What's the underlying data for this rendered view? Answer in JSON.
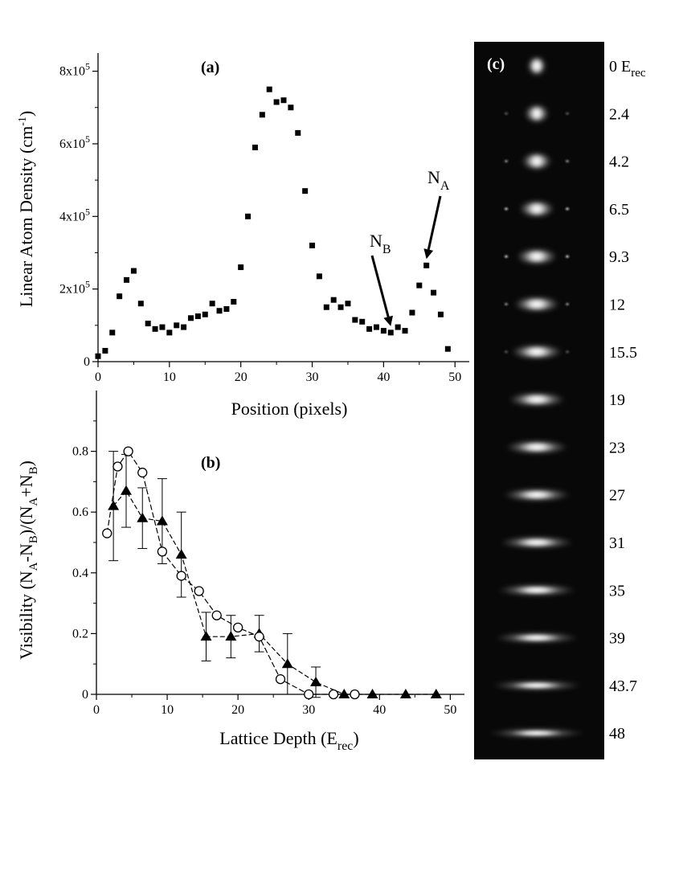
{
  "chart_data": [
    {
      "type": "scatter",
      "panel_label": "(a)",
      "xlabel": "Position (pixels)",
      "ylabel_parts": [
        "Linear Atom Density (cm",
        "-1",
        ")"
      ],
      "xlim": [
        0,
        52
      ],
      "ylim": [
        0,
        850000
      ],
      "xticks": [
        0,
        10,
        20,
        30,
        40,
        50
      ],
      "xtick_labels": [
        "0",
        "10",
        "20",
        "30",
        "40",
        "50"
      ],
      "yticks": [
        0,
        200000,
        400000,
        600000,
        800000
      ],
      "ytick_labels": [
        [
          "0",
          ""
        ],
        [
          "2x10",
          "5"
        ],
        [
          "4x10",
          "5"
        ],
        [
          "6x10",
          "5"
        ],
        [
          "8x10",
          "5"
        ]
      ],
      "marker": "filled-square",
      "series": [
        {
          "x": [
            0,
            1,
            2,
            3,
            4,
            5,
            6,
            7,
            8,
            9,
            10,
            11,
            12,
            13,
            14,
            15,
            16,
            17,
            18,
            19,
            20,
            21,
            22,
            23,
            24,
            25,
            26,
            27,
            28,
            29,
            30,
            31,
            32,
            33,
            34,
            35,
            36,
            37,
            38,
            39,
            40,
            41,
            42,
            43,
            44,
            45,
            46,
            47,
            48,
            49
          ],
          "y": [
            15000,
            30000,
            80000,
            180000,
            225000,
            250000,
            160000,
            105000,
            90000,
            95000,
            80000,
            100000,
            95000,
            120000,
            125000,
            130000,
            160000,
            140000,
            145000,
            165000,
            260000,
            400000,
            590000,
            680000,
            750000,
            715000,
            720000,
            700000,
            630000,
            470000,
            320000,
            235000,
            150000,
            170000,
            150000,
            160000,
            115000,
            110000,
            90000,
            95000,
            85000,
            80000,
            95000,
            85000,
            135000,
            210000,
            265000,
            190000,
            130000,
            35000
          ]
        }
      ],
      "annotations": [
        {
          "text": "N",
          "sub": "B",
          "points_to": [
            41,
            80000
          ]
        },
        {
          "text": "N",
          "sub": "A",
          "points_to": [
            46,
            265000
          ]
        }
      ]
    },
    {
      "type": "line",
      "panel_label": "(b)",
      "xlabel_parts": [
        "Lattice Depth (E",
        "rec",
        ")"
      ],
      "ylabel": "Visibility (N_A-N_B)/(N_A+N_B)",
      "xlim": [
        0,
        52
      ],
      "ylim": [
        0,
        1.0
      ],
      "xticks": [
        0,
        10,
        20,
        30,
        40,
        50
      ],
      "xtick_labels": [
        "0",
        "10",
        "20",
        "30",
        "40",
        "50"
      ],
      "yticks": [
        0,
        0.2,
        0.4,
        0.6,
        0.8
      ],
      "ytick_labels": [
        "0",
        "0.2",
        "0.4",
        "0.6",
        "0.8"
      ],
      "series": [
        {
          "marker": "open-circle",
          "x": [
            1.5,
            3.0,
            4.5,
            6.5,
            9.3,
            12,
            14.5,
            17,
            20,
            23,
            26,
            30,
            33.5,
            36.5
          ],
          "y": [
            0.53,
            0.75,
            0.8,
            0.73,
            0.47,
            0.39,
            0.34,
            0.26,
            0.22,
            0.19,
            0.05,
            0.0,
            0.0,
            0.0
          ]
        },
        {
          "marker": "filled-triangle",
          "x": [
            2.4,
            4.2,
            6.5,
            9.3,
            12,
            15.5,
            19,
            23,
            27,
            31,
            35,
            39,
            43.7,
            48
          ],
          "y": [
            0.62,
            0.67,
            0.58,
            0.57,
            0.46,
            0.19,
            0.19,
            0.2,
            0.1,
            0.04,
            0.0,
            0.0,
            0.0,
            0.0
          ],
          "err": [
            0.18,
            0.12,
            0.1,
            0.14,
            0.14,
            0.08,
            0.07,
            0.06,
            0.1,
            0.05,
            0.0,
            0.0,
            0.0,
            0.0
          ]
        }
      ]
    }
  ],
  "panel_c": {
    "label": "(c)",
    "depths": [
      "0",
      "2.4",
      "4.2",
      "6.5",
      "9.3",
      "12",
      "15.5",
      "19",
      "23",
      "27",
      "31",
      "35",
      "39",
      "43.7",
      "48"
    ],
    "first_unit": "E",
    "first_unit_sub": "rec"
  }
}
